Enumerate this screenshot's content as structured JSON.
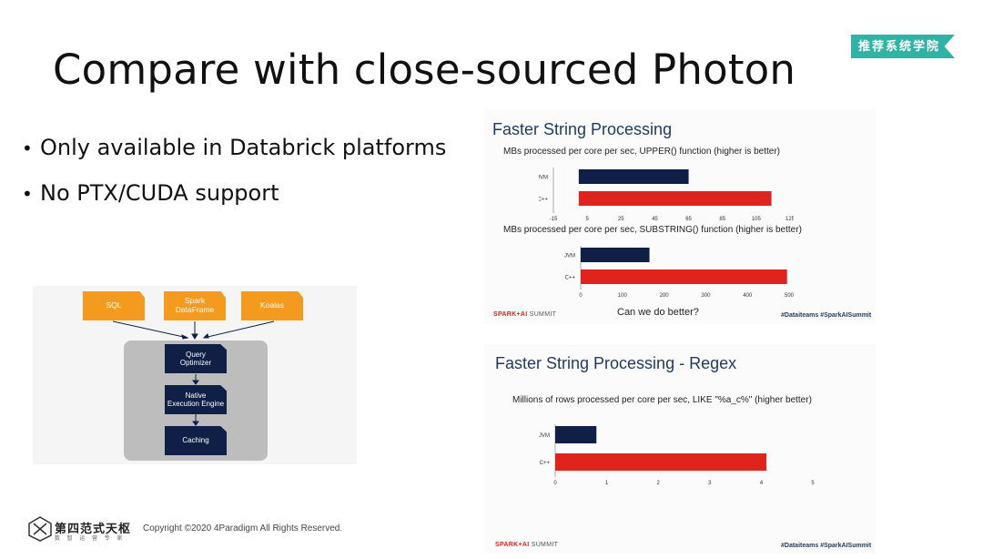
{
  "slide": {
    "title": "Compare with close-sourced Photon",
    "tag": "推荐系统学院",
    "bullets": [
      "Only available in Databrick platforms",
      "No PTX/CUDA support"
    ]
  },
  "diagram": {
    "sources": [
      "SQL",
      "Spark\nDataFrame",
      "Koalas"
    ],
    "stages": [
      "Query\nOptimizer",
      "Native\nExecution Engine",
      "Caching"
    ],
    "colors": {
      "source": "#f39a1f",
      "stage": "#0f1f45",
      "box": "#bdbdbd"
    }
  },
  "panel_top": {
    "title": "Faster String Processing",
    "question": "Can we do better?",
    "summit": {
      "brand": "SPARK+AI",
      "suffix": "SUMMIT"
    },
    "hashtags": "#Dataiteams #SparkAISummit"
  },
  "panel_bottom": {
    "title": "Faster String Processing - Regex",
    "summit": {
      "brand": "SPARK+AI",
      "suffix": "SUMMIT"
    },
    "hashtags": "#Dataiteams #SparkAISummit"
  },
  "chart_data": [
    {
      "type": "bar",
      "orientation": "horizontal",
      "title": "MBs processed per core per sec, UPPER() function (higher is better)",
      "categories": [
        "JVM",
        "C++"
      ],
      "values": [
        65,
        114
      ],
      "xlim": [
        -15,
        125
      ],
      "xticks": [
        "-15",
        "5",
        "25",
        "45",
        "65",
        "85",
        "105",
        "125"
      ],
      "colors": [
        "#0f1f45",
        "#e0231c"
      ]
    },
    {
      "type": "bar",
      "orientation": "horizontal",
      "title": "MBs processed per core per sec, SUBSTRING() function (higher is better)",
      "categories": [
        "JVM",
        "C++"
      ],
      "values": [
        165,
        495
      ],
      "xlim": [
        0,
        500
      ],
      "xticks": [
        "0",
        "100",
        "200",
        "300",
        "400",
        "500"
      ],
      "colors": [
        "#0f1f45",
        "#e0231c"
      ]
    },
    {
      "type": "bar",
      "orientation": "horizontal",
      "title": "Millions of rows processed per core per sec, LIKE \"%a_c%\" (higher better)",
      "categories": [
        "JVM",
        "C++"
      ],
      "values": [
        0.8,
        4.1
      ],
      "xlim": [
        0,
        5
      ],
      "xticks": [
        "0",
        "1",
        "2",
        "3",
        "4",
        "5"
      ],
      "colors": [
        "#0f1f45",
        "#e0231c"
      ]
    }
  ],
  "footer": {
    "logo_text": "第四范式天枢",
    "logo_sub": "数 智 运 营 专 家",
    "copyright": "Copyright ©2020 4Paradigm All Rights Reserved."
  }
}
